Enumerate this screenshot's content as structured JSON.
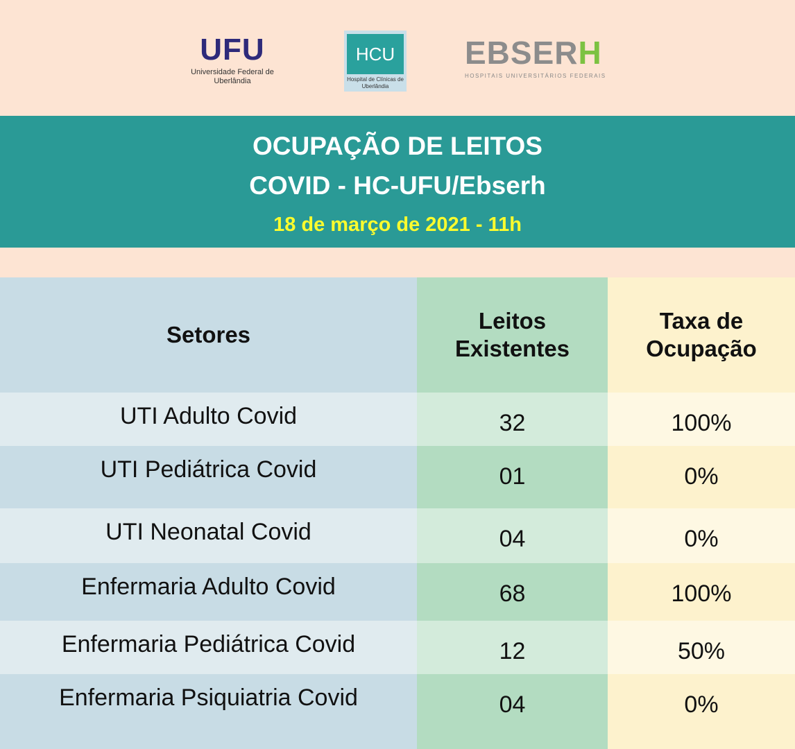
{
  "logos": {
    "ufu": {
      "mark": "UFU",
      "subtitle": "Universidade Federal de Uberlândia"
    },
    "hc": {
      "mark": "HCU",
      "subtitle": "Hospital de Clínicas de Uberlândia"
    },
    "ebserh": {
      "mark_main": "EBSER",
      "mark_accent": "H",
      "subtitle": "HOSPITAIS UNIVERSITÁRIOS FEDERAIS"
    }
  },
  "header": {
    "title_line1": "OCUPAÇÃO DE LEITOS",
    "title_line2": "COVID - HC-UFU/Ebserh",
    "date": "18 de março de 2021 - 11h"
  },
  "table": {
    "columns": [
      "Setores",
      "Leitos Existentes",
      "Taxa de Ocupação"
    ],
    "rows": [
      {
        "setor": "UTI Adulto Covid",
        "leitos": "32",
        "taxa": "100%"
      },
      {
        "setor": "UTI Pediátrica Covid",
        "leitos": "01",
        "taxa": "0%"
      },
      {
        "setor": "UTI Neonatal Covid",
        "leitos": "04",
        "taxa": "0%"
      },
      {
        "setor": "Enfermaria Adulto Covid",
        "leitos": "68",
        "taxa": "100%"
      },
      {
        "setor": "Enfermaria Pediátrica Covid",
        "leitos": "12",
        "taxa": "50%"
      },
      {
        "setor": "Enfermaria Psiquiatria Covid",
        "leitos": "04",
        "taxa": "0%"
      }
    ]
  },
  "colors": {
    "background": "#fde4d3",
    "band": "#2a9a96",
    "date": "#fbfb2e"
  }
}
